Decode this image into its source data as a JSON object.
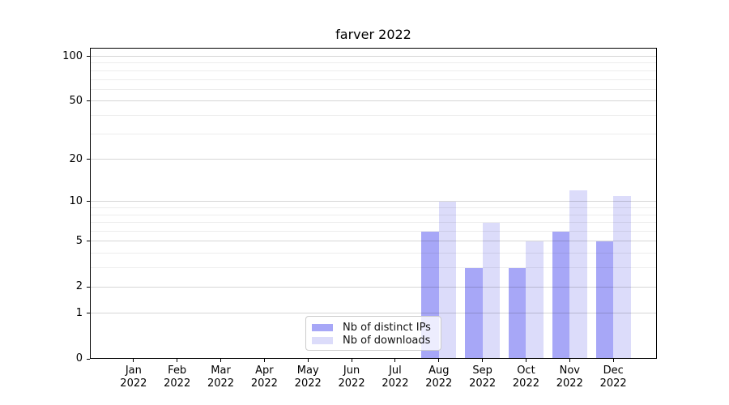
{
  "title": "farver 2022",
  "chart_data": {
    "type": "bar",
    "title": "farver 2022",
    "categories": [
      "Jan",
      "Feb",
      "Mar",
      "Apr",
      "May",
      "Jun",
      "Jul",
      "Aug",
      "Sep",
      "Oct",
      "Nov",
      "Dec"
    ],
    "x_tick_second_line": "2022",
    "series": [
      {
        "name": "Nb of distinct IPs",
        "color": "#a7a7f7",
        "values": [
          0,
          0,
          0,
          0,
          0,
          0,
          0,
          6,
          3,
          3,
          6,
          5
        ]
      },
      {
        "name": "Nb of downloads",
        "color": "#dcdcfa",
        "values": [
          0,
          0,
          0,
          0,
          0,
          0,
          0,
          10,
          7,
          5,
          12,
          11
        ]
      }
    ],
    "xlabel": "",
    "ylabel": "",
    "y_scale": "log10(1+v)",
    "y_ticks": [
      0,
      1,
      2,
      5,
      10,
      20,
      50,
      100
    ],
    "y_minor_gridlines": [
      3,
      4,
      6,
      7,
      8,
      9,
      30,
      40,
      60,
      70,
      80,
      90
    ],
    "ylim": [
      0,
      114
    ],
    "grid": true,
    "legend_position": "lower center-left inside plot"
  }
}
